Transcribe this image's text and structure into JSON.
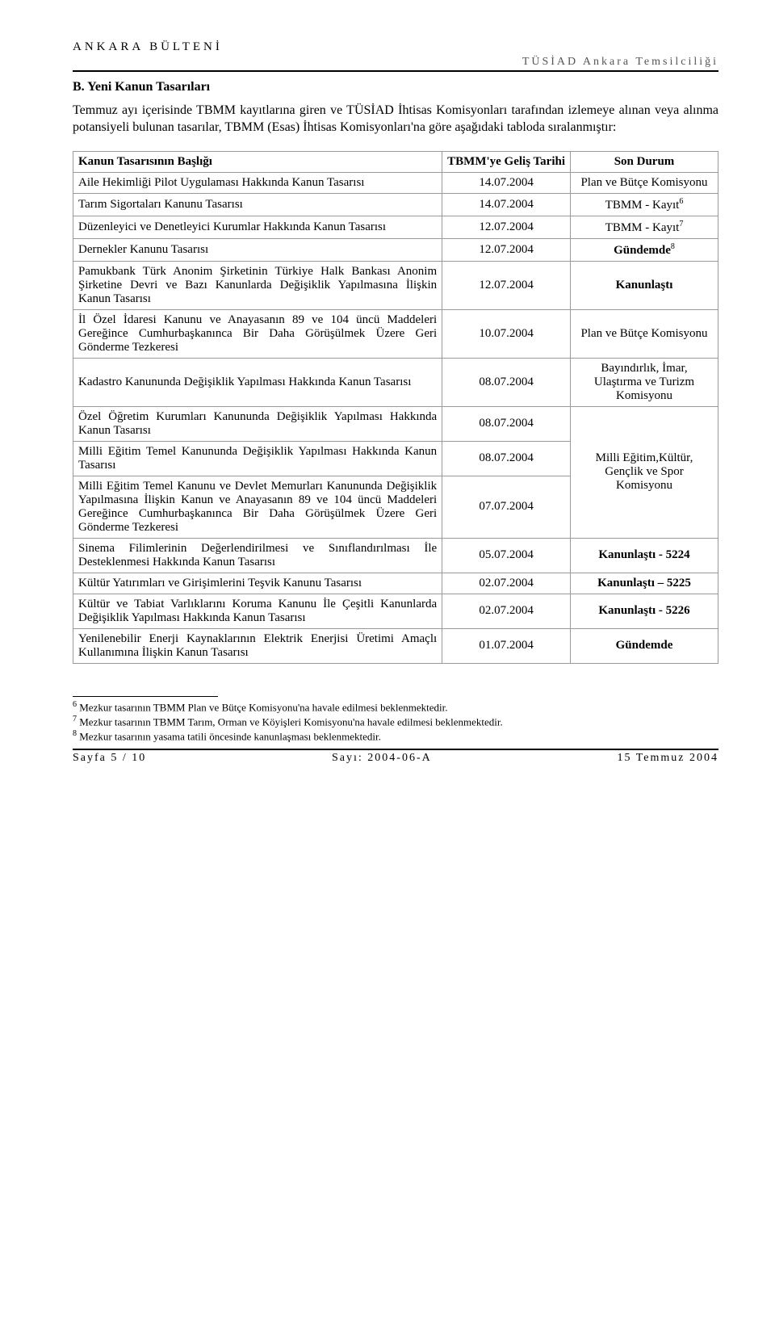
{
  "header": {
    "top": "ANKARA BÜLTENİ",
    "sub": "TÜSİAD Ankara Temsilciliği"
  },
  "section": {
    "title": "B.    Yeni Kanun Tasarıları",
    "intro": "Temmuz ayı içerisinde TBMM kayıtlarına giren ve TÜSİAD İhtisas Komisyonları tarafından izlemeye alınan veya alınma potansiyeli bulunan tasarılar, TBMM (Esas) İhtisas Komisyonları'na göre aşağıdaki tabloda sıralanmıştır:"
  },
  "table": {
    "columns": [
      "Kanun Tasarısının Başlığı",
      "TBMM'ye Geliş Tarihi",
      "Son Durum"
    ],
    "rows": [
      {
        "title": "Aile Hekimliği Pilot Uygulaması Hakkında Kanun Tasarısı",
        "date": "14.07.2004",
        "status": "Plan ve Bütçe Komisyonu",
        "sup": ""
      },
      {
        "title": "Tarım Sigortaları Kanunu Tasarısı",
        "date": "14.07.2004",
        "status": "TBMM - Kayıt",
        "sup": "6"
      },
      {
        "title": "Düzenleyici ve Denetleyici Kurumlar Hakkında Kanun Tasarısı",
        "date": "12.07.2004",
        "status": "TBMM - Kayıt",
        "sup": "7"
      },
      {
        "title": "Dernekler Kanunu Tasarısı",
        "date": "12.07.2004",
        "status_bold": "Gündemde",
        "sup": "8"
      },
      {
        "title": "Pamukbank Türk Anonim Şirketinin Türkiye Halk Bankası Anonim Şirketine Devri ve Bazı Kanunlarda Değişiklik Yapılmasına İlişkin Kanun Tasarısı",
        "date": "12.07.2004",
        "status_bold": "Kanunlaştı",
        "sup": ""
      },
      {
        "title": "İl Özel İdaresi Kanunu ve Anayasanın 89 ve 104 üncü Maddeleri Gereğince Cumhurbaşkanınca Bir Daha Görüşülmek Üzere Geri Gönderme Tezkeresi",
        "date": "10.07.2004",
        "status": "Plan ve Bütçe Komisyonu",
        "sup": ""
      },
      {
        "title": "Kadastro Kanununda Değişiklik Yapılması Hakkında Kanun Tasarısı",
        "date": "08.07.2004",
        "status": "Bayındırlık, İmar, Ulaştırma ve Turizm Komisyonu",
        "sup": ""
      },
      {
        "title": "Özel Öğretim Kurumları Kanununda Değişiklik Yapılması Hakkında Kanun Tasarısı",
        "date": "08.07.2004",
        "rowspan_status": 3,
        "status": "Milli Eğitim,Kültür, Gençlik ve Spor Komisyonu",
        "sup": ""
      },
      {
        "title": "Milli Eğitim Temel Kanununda Değişiklik Yapılması Hakkında Kanun Tasarısı",
        "date": "08.07.2004",
        "skip_status": true
      },
      {
        "title": "Milli Eğitim Temel Kanunu ve Devlet Memurları Kanununda Değişiklik Yapılmasına İlişkin Kanun ve Anayasanın 89 ve 104 üncü Maddeleri Gereğince Cumhurbaşkanınca Bir Daha Görüşülmek Üzere Geri Gönderme Tezkeresi",
        "date": "07.07.2004",
        "skip_status": true
      },
      {
        "title": "Sinema Filimlerinin Değerlendirilmesi ve Sınıflandırılması İle Desteklenmesi Hakkında Kanun Tasarısı",
        "date": "05.07.2004",
        "status_bold": "Kanunlaştı - 5224",
        "sup": ""
      },
      {
        "title": "Kültür Yatırımları ve Girişimlerini Teşvik Kanunu Tasarısı",
        "date": "02.07.2004",
        "status_bold": "Kanunlaştı – 5225",
        "sup": ""
      },
      {
        "title": "Kültür ve Tabiat Varlıklarını Koruma Kanunu İle Çeşitli Kanunlarda Değişiklik Yapılması Hakkında Kanun Tasarısı",
        "date": "02.07.2004",
        "status_bold": "Kanunlaştı - 5226",
        "sup": ""
      },
      {
        "title": "Yenilenebilir Enerji Kaynaklarının Elektrik Enerjisi Üretimi Amaçlı Kullanımına İlişkin Kanun Tasarısı",
        "date": "01.07.2004",
        "status_bold": "Gündemde",
        "sup": ""
      }
    ]
  },
  "footnotes": [
    {
      "num": "6",
      "text": " Mezkur tasarının TBMM Plan ve Bütçe Komisyonu'na havale edilmesi beklenmektedir."
    },
    {
      "num": "7",
      "text": " Mezkur tasarının TBMM Tarım, Orman ve Köyişleri Komisyonu'na havale edilmesi beklenmektedir."
    },
    {
      "num": "8",
      "text": " Mezkur tasarının yasama tatili öncesinde kanunlaşması beklenmektedir."
    }
  ],
  "footer": {
    "left": "Sayfa 5 / 10",
    "mid": "Sayı: 2004-06-A",
    "right": "15 Temmuz 2004"
  }
}
